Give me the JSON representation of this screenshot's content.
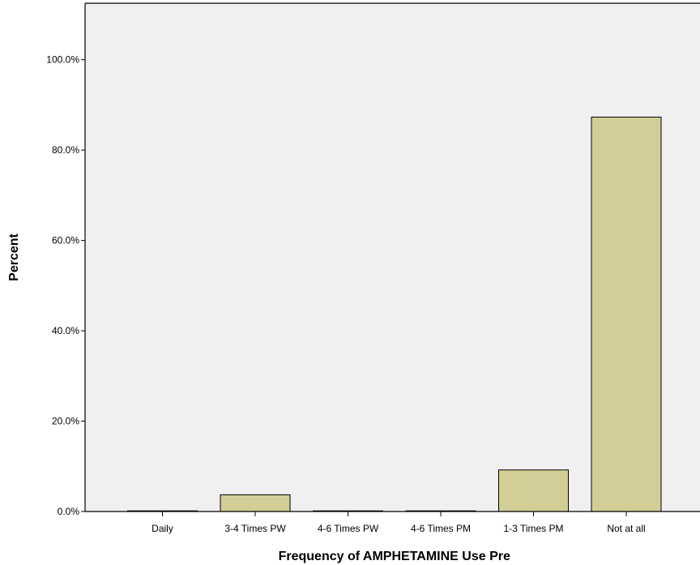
{
  "chart_data": {
    "type": "bar",
    "categories": [
      "Daily",
      "3-4 Times PW",
      "4-6 Times PW",
      "4-6 Times PM",
      "1-3 Times PM",
      "Not at all"
    ],
    "values": [
      0.0,
      3.7,
      0.0,
      0.0,
      9.2,
      87.3
    ],
    "xlabel": "Frequency of AMPHETAMINE Use Pre",
    "ylabel": "Percent",
    "ylim": [
      0,
      112.5
    ],
    "yticks": [
      0,
      20,
      40,
      60,
      80,
      100
    ],
    "ytick_labels": [
      "0.0%",
      "20.0%",
      "40.0%",
      "60.0%",
      "80.0%",
      "100.0%"
    ],
    "grid": false,
    "colors": {
      "plot_background": "#f0f0f0",
      "bar_fill": "#d3ce97",
      "bar_stroke": "#000000",
      "axis": "#000000"
    }
  }
}
